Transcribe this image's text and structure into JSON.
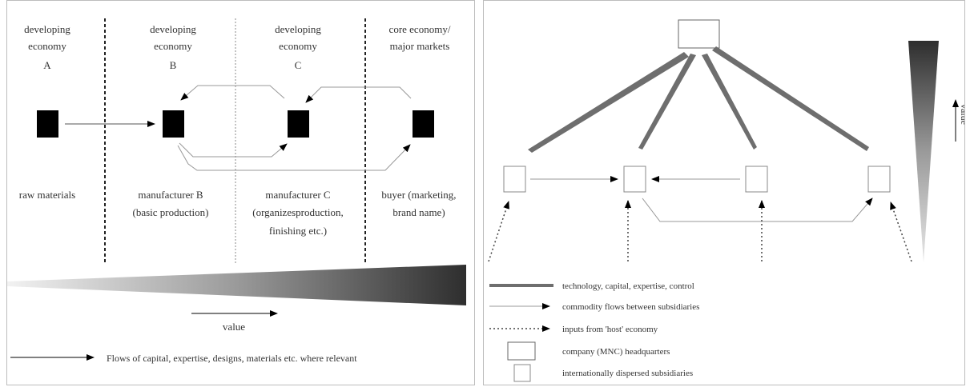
{
  "left_diagram": {
    "columns": [
      {
        "line1": "developing",
        "line2": "economy",
        "line3": "A"
      },
      {
        "line1": "developing",
        "line2": "economy",
        "line3": "B"
      },
      {
        "line1": "developing",
        "line2": "economy",
        "line3": "C"
      },
      {
        "line1": "core economy/",
        "line2": "major markets",
        "line3": ""
      }
    ],
    "roles": [
      {
        "line1": "raw materials",
        "line2": "",
        "line3": ""
      },
      {
        "line1": "manufacturer B",
        "line2": "(basic production)",
        "line3": ""
      },
      {
        "line1": "manufacturer C",
        "line2": "(organizesproduction,",
        "line3": "finishing etc.)"
      },
      {
        "line1": "buyer (marketing,",
        "line2": "brand name)",
        "line3": ""
      }
    ],
    "value_label": "value",
    "legend_label": "Flows of capital, expertise, designs, materials etc. where relevant"
  },
  "right_diagram": {
    "axis_label": "value",
    "legend": [
      {
        "label": "technology, capital, expertise, control"
      },
      {
        "label": "commodity flows between subsidiaries"
      },
      {
        "label": "inputs from 'host' economy"
      },
      {
        "label": "company (MNC) headquarters"
      },
      {
        "label": "internationally dispersed subsidiaries"
      }
    ]
  },
  "colors": {
    "node_fill": "#000000",
    "thick_arrow": "#6e6e6e",
    "commodity_arrow": "#9a9a9a",
    "wedge_dark": "#2e2e2e",
    "wedge_light": "#f2f2f2"
  }
}
